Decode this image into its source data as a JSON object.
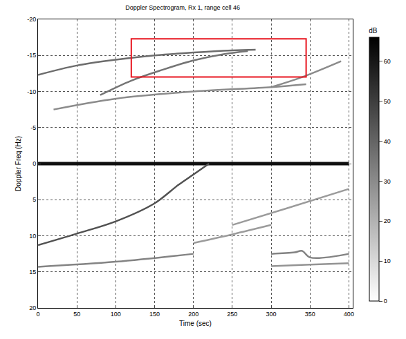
{
  "chart_data": {
    "type": "spectrogram",
    "title": "Doppler Spectrogram, Rx 1, range cell 46",
    "x_label": "Time (sec)",
    "y_label": "Doppler Freq (Hz)",
    "xlim": [
      0,
      405
    ],
    "ylim": [
      20,
      -20
    ],
    "xticks": [
      0,
      50,
      100,
      150,
      200,
      250,
      300,
      350,
      400
    ],
    "yticks": [
      -20,
      -15,
      -10,
      -5,
      0,
      5,
      10,
      15,
      20
    ],
    "grid": true,
    "line_style": "dotted",
    "colorbar": {
      "title": "dB",
      "range": [
        0,
        66
      ],
      "ticks": [
        0,
        10,
        20,
        30,
        40,
        50,
        60
      ]
    },
    "series": [
      {
        "intensity": 62,
        "x": [
          0,
          100,
          200,
          300,
          400
        ],
        "values": [
          0,
          0,
          0,
          0,
          0
        ]
      },
      {
        "intensity": 38,
        "x": [
          0,
          50,
          100,
          150,
          200,
          250,
          280
        ],
        "values": [
          -12.3,
          -13.6,
          -14.4,
          -15.0,
          -15.4,
          -15.7,
          -15.8
        ]
      },
      {
        "intensity": 36,
        "x": [
          80,
          120,
          160,
          200,
          240,
          270
        ],
        "values": [
          -9.5,
          -11.5,
          -13.0,
          -14.3,
          -15.2,
          -15.6
        ]
      },
      {
        "intensity": 30,
        "x": [
          20,
          100,
          200,
          300,
          345
        ],
        "values": [
          -7.5,
          -9.0,
          -10.0,
          -10.6,
          -11.0
        ]
      },
      {
        "intensity": 30,
        "x": [
          300,
          340,
          390
        ],
        "values": [
          -10.6,
          -12.0,
          -14.2
        ]
      },
      {
        "intensity": 45,
        "x": [
          0,
          50,
          100,
          150,
          180,
          200,
          220
        ],
        "values": [
          11.3,
          9.7,
          8.0,
          5.5,
          3.0,
          1.5,
          0
        ]
      },
      {
        "intensity": 26,
        "x": [
          200,
          250,
          300
        ],
        "values": [
          11.0,
          9.8,
          8.5
        ]
      },
      {
        "intensity": 26,
        "x": [
          250,
          320,
          400
        ],
        "values": [
          8.5,
          6.2,
          3.5
        ]
      },
      {
        "intensity": 32,
        "x": [
          0,
          100,
          200
        ],
        "values": [
          14.3,
          13.6,
          12.5
        ]
      },
      {
        "intensity": 32,
        "x": [
          300,
          330,
          340,
          350,
          400
        ],
        "values": [
          12.5,
          12.3,
          12.1,
          13.0,
          12.5
        ]
      },
      {
        "intensity": 28,
        "x": [
          300,
          350,
          400
        ],
        "values": [
          14.2,
          14.0,
          13.8
        ]
      }
    ],
    "region": {
      "x": [
        120,
        345
      ],
      "y": [
        -17.3,
        -12.0
      ],
      "color": "#e8141e"
    }
  }
}
